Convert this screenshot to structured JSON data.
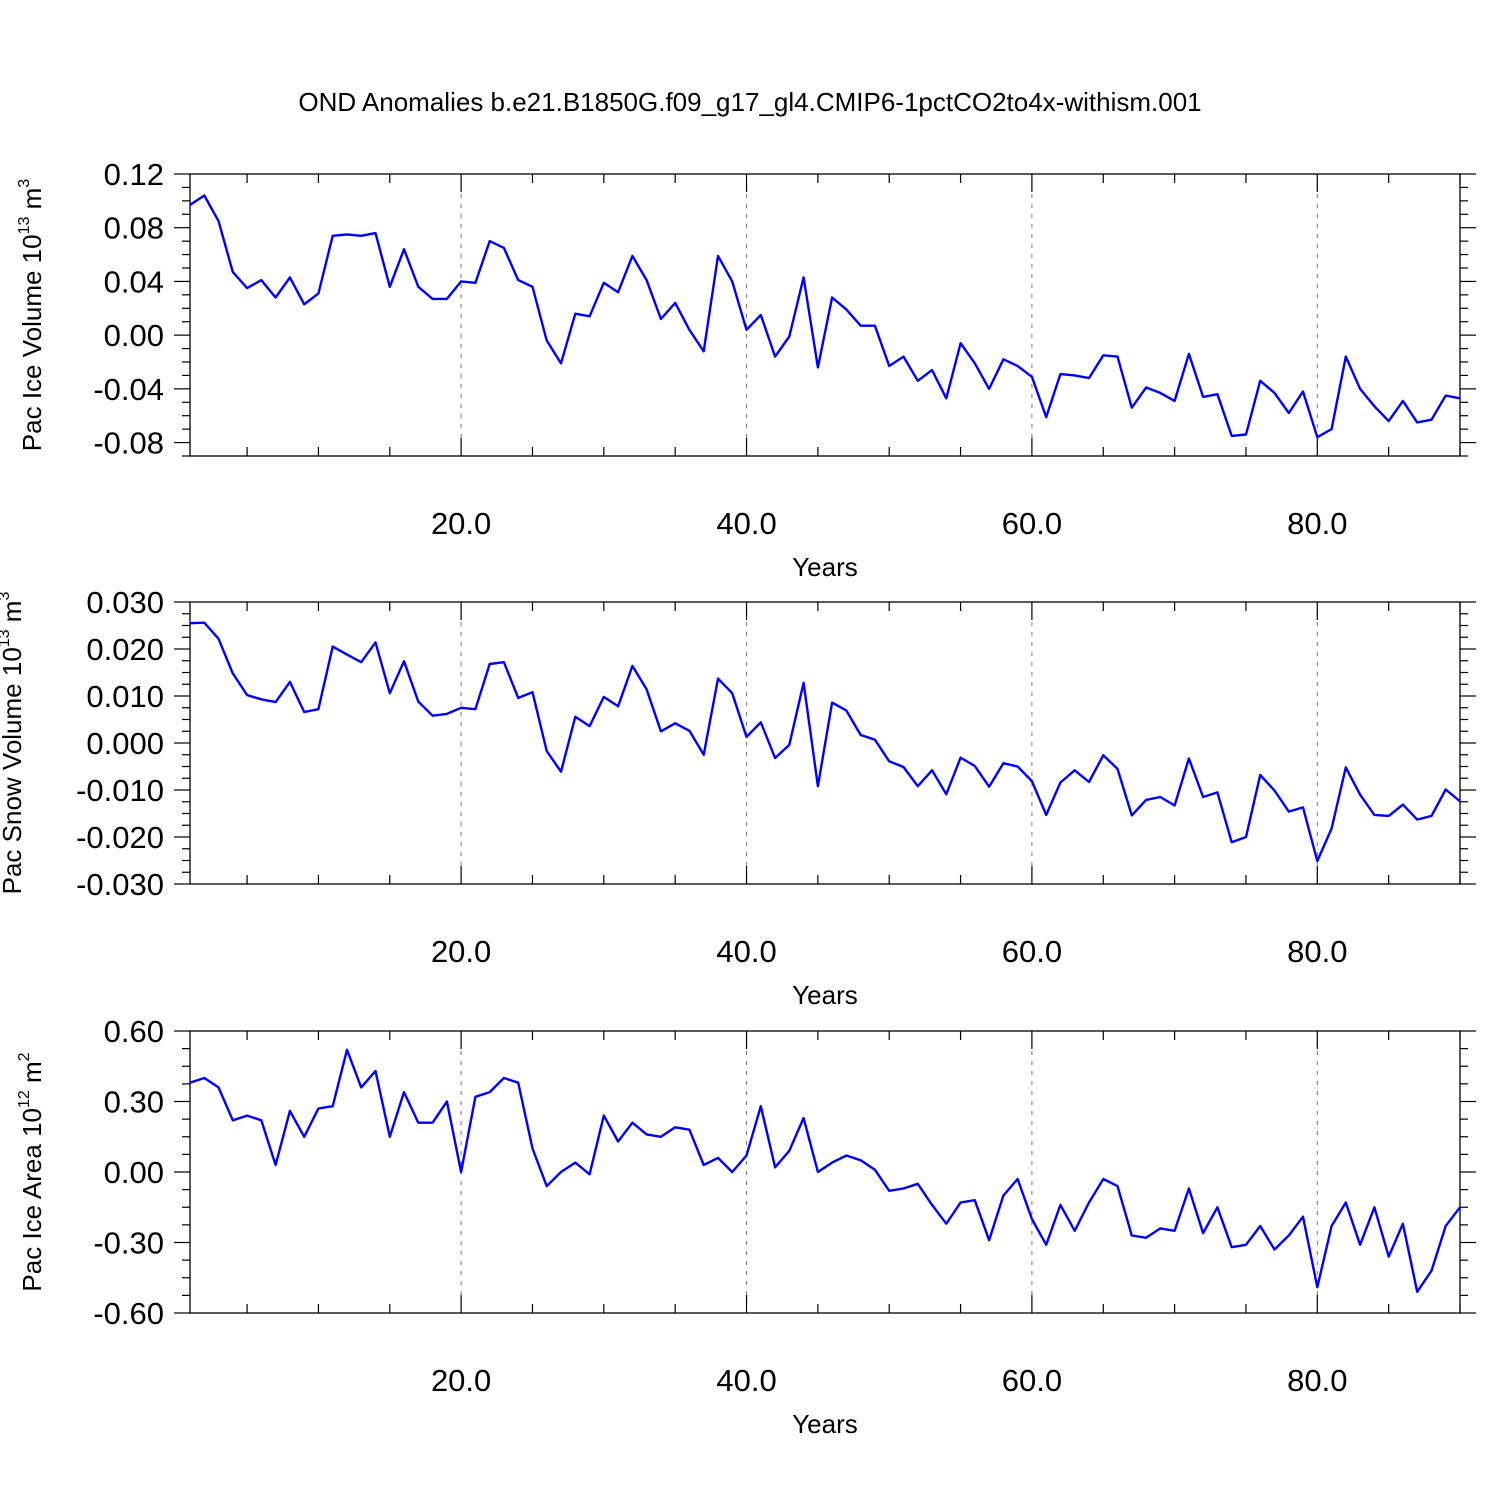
{
  "title": "OND Anomalies b.e21.B1850G.f09_g17_gl4.CMIP6-1pctCO2to4x-withism.001",
  "line_color": "#0000ff",
  "chart_data": [
    {
      "type": "line",
      "ylabel_main": "Pac Ice Volume 10",
      "ylabel_exp": "13",
      "ylabel_unit": " m",
      "ylabel_unit_exp": "3",
      "xlabel": "Years",
      "xlim": [
        1,
        90
      ],
      "ylim": [
        -0.09,
        0.12
      ],
      "xticks": [
        20,
        40,
        60,
        80
      ],
      "xtick_labels": [
        "20.0",
        "40.0",
        "60.0",
        "80.0"
      ],
      "yticks": [
        0.12,
        0.08,
        0.04,
        0.0,
        -0.04,
        -0.08
      ],
      "ytick_labels": [
        "0.12",
        "0.08",
        "0.04",
        "0.00",
        "-0.04",
        "-0.08"
      ],
      "grid": "x-dashed",
      "x": [
        1,
        2,
        3,
        4,
        5,
        6,
        7,
        8,
        9,
        10,
        11,
        12,
        13,
        14,
        15,
        16,
        17,
        18,
        19,
        20,
        21,
        22,
        23,
        24,
        25,
        26,
        27,
        28,
        29,
        30,
        31,
        32,
        33,
        34,
        35,
        36,
        37,
        38,
        39,
        40,
        41,
        42,
        43,
        44,
        45,
        46,
        47,
        48,
        49,
        50,
        51,
        52,
        53,
        54,
        55,
        56,
        57,
        58,
        59,
        60,
        61,
        62,
        63,
        64,
        65,
        66,
        67,
        68,
        69,
        70,
        71,
        72,
        73,
        74,
        75,
        76,
        77,
        78,
        79,
        80,
        81,
        82,
        83,
        84,
        85,
        86,
        87,
        88,
        89,
        90
      ],
      "values": [
        0.097,
        0.104,
        0.085,
        0.047,
        0.035,
        0.041,
        0.028,
        0.043,
        0.023,
        0.031,
        0.074,
        0.075,
        0.074,
        0.076,
        0.036,
        0.064,
        0.036,
        0.027,
        0.027,
        0.04,
        0.039,
        0.07,
        0.065,
        0.041,
        0.036,
        -0.004,
        -0.021,
        0.016,
        0.014,
        0.039,
        0.032,
        0.059,
        0.041,
        0.012,
        0.024,
        0.004,
        -0.012,
        0.059,
        0.04,
        0.004,
        0.015,
        -0.016,
        -0.001,
        0.043,
        -0.024,
        0.028,
        0.019,
        0.007,
        0.007,
        -0.023,
        -0.016,
        -0.034,
        -0.026,
        -0.047,
        -0.006,
        -0.021,
        -0.04,
        -0.018,
        -0.023,
        -0.031,
        -0.061,
        -0.029,
        -0.03,
        -0.032,
        -0.015,
        -0.016,
        -0.054,
        -0.039,
        -0.043,
        -0.049,
        -0.014,
        -0.046,
        -0.044,
        -0.075,
        -0.074,
        -0.034,
        -0.043,
        -0.058,
        -0.042,
        -0.076,
        -0.07,
        -0.016,
        -0.04,
        -0.053,
        -0.064,
        -0.049,
        -0.065,
        -0.063,
        -0.045,
        -0.047
      ]
    },
    {
      "type": "line",
      "ylabel_main": "Pac Snow Volume 10",
      "ylabel_exp": "13",
      "ylabel_unit": " m",
      "ylabel_unit_exp": "3",
      "xlabel": "Years",
      "xlim": [
        1,
        90
      ],
      "ylim": [
        -0.03,
        0.03
      ],
      "xticks": [
        20,
        40,
        60,
        80
      ],
      "xtick_labels": [
        "20.0",
        "40.0",
        "60.0",
        "80.0"
      ],
      "yticks": [
        0.03,
        0.02,
        0.01,
        0.0,
        -0.01,
        -0.02,
        -0.03
      ],
      "ytick_labels": [
        "0.030",
        "0.020",
        "0.010",
        "0.000",
        "-0.010",
        "-0.020",
        "-0.030"
      ],
      "grid": "x-dashed",
      "x": [
        1,
        2,
        3,
        4,
        5,
        6,
        7,
        8,
        9,
        10,
        11,
        12,
        13,
        14,
        15,
        16,
        17,
        18,
        19,
        20,
        21,
        22,
        23,
        24,
        25,
        26,
        27,
        28,
        29,
        30,
        31,
        32,
        33,
        34,
        35,
        36,
        37,
        38,
        39,
        40,
        41,
        42,
        43,
        44,
        45,
        46,
        47,
        48,
        49,
        50,
        51,
        52,
        53,
        54,
        55,
        56,
        57,
        58,
        59,
        60,
        61,
        62,
        63,
        64,
        65,
        66,
        67,
        68,
        69,
        70,
        71,
        72,
        73,
        74,
        75,
        76,
        77,
        78,
        79,
        80,
        81,
        82,
        83,
        84,
        85,
        86,
        87,
        88,
        89,
        90
      ],
      "values": [
        0.0255,
        0.0256,
        0.0222,
        0.0148,
        0.0102,
        0.0093,
        0.0087,
        0.013,
        0.0066,
        0.0072,
        0.0205,
        0.0188,
        0.0172,
        0.0214,
        0.0106,
        0.0174,
        0.0088,
        0.0058,
        0.0062,
        0.0075,
        0.0072,
        0.0168,
        0.0172,
        0.0096,
        0.0108,
        -0.0017,
        -0.0061,
        0.0056,
        0.0036,
        0.0098,
        0.0078,
        0.0164,
        0.0114,
        0.0025,
        0.0042,
        0.0026,
        -0.0025,
        0.0137,
        0.0106,
        0.0013,
        0.0044,
        -0.0032,
        -0.0004,
        0.0128,
        -0.0092,
        0.0086,
        0.0069,
        0.0017,
        0.0007,
        -0.0039,
        -0.0051,
        -0.0092,
        -0.0058,
        -0.0109,
        -0.0031,
        -0.0049,
        -0.0093,
        -0.0043,
        -0.005,
        -0.0081,
        -0.0153,
        -0.0084,
        -0.0058,
        -0.0083,
        -0.0026,
        -0.0055,
        -0.0154,
        -0.0121,
        -0.0115,
        -0.0133,
        -0.0033,
        -0.0115,
        -0.0105,
        -0.0211,
        -0.02,
        -0.0068,
        -0.0101,
        -0.0146,
        -0.0137,
        -0.0251,
        -0.0182,
        -0.0052,
        -0.011,
        -0.0153,
        -0.0155,
        -0.0131,
        -0.0163,
        -0.0155,
        -0.0099,
        -0.0124
      ]
    },
    {
      "type": "line",
      "ylabel_main": "Pac Ice Area 10",
      "ylabel_exp": "12",
      "ylabel_unit": " m",
      "ylabel_unit_exp": "2",
      "xlabel": "Years",
      "xlim": [
        1,
        90
      ],
      "ylim": [
        -0.6,
        0.6
      ],
      "xticks": [
        20,
        40,
        60,
        80
      ],
      "xtick_labels": [
        "20.0",
        "40.0",
        "60.0",
        "80.0"
      ],
      "yticks": [
        0.6,
        0.3,
        0.0,
        -0.3,
        -0.6
      ],
      "ytick_labels": [
        "0.60",
        "0.30",
        "0.00",
        "-0.30",
        "-0.60"
      ],
      "grid": "x-dashed",
      "x": [
        1,
        2,
        3,
        4,
        5,
        6,
        7,
        8,
        9,
        10,
        11,
        12,
        13,
        14,
        15,
        16,
        17,
        18,
        19,
        20,
        21,
        22,
        23,
        24,
        25,
        26,
        27,
        28,
        29,
        30,
        31,
        32,
        33,
        34,
        35,
        36,
        37,
        38,
        39,
        40,
        41,
        42,
        43,
        44,
        45,
        46,
        47,
        48,
        49,
        50,
        51,
        52,
        53,
        54,
        55,
        56,
        57,
        58,
        59,
        60,
        61,
        62,
        63,
        64,
        65,
        66,
        67,
        68,
        69,
        70,
        71,
        72,
        73,
        74,
        75,
        76,
        77,
        78,
        79,
        80,
        81,
        82,
        83,
        84,
        85,
        86,
        87,
        88,
        89,
        90
      ],
      "values": [
        0.38,
        0.4,
        0.36,
        0.22,
        0.24,
        0.22,
        0.03,
        0.26,
        0.15,
        0.27,
        0.28,
        0.52,
        0.36,
        0.43,
        0.15,
        0.34,
        0.21,
        0.21,
        0.3,
        -0.0,
        0.32,
        0.34,
        0.4,
        0.38,
        0.1,
        -0.06,
        -0.0,
        0.04,
        -0.01,
        0.24,
        0.13,
        0.21,
        0.16,
        0.15,
        0.19,
        0.18,
        0.03,
        0.06,
        -0.0,
        0.07,
        0.28,
        0.02,
        0.09,
        0.23,
        0.0,
        0.04,
        0.07,
        0.05,
        0.01,
        -0.08,
        -0.07,
        -0.05,
        -0.14,
        -0.22,
        -0.13,
        -0.12,
        -0.29,
        -0.1,
        -0.03,
        -0.2,
        -0.31,
        -0.14,
        -0.25,
        -0.13,
        -0.03,
        -0.06,
        -0.27,
        -0.28,
        -0.24,
        -0.25,
        -0.07,
        -0.26,
        -0.15,
        -0.32,
        -0.31,
        -0.23,
        -0.33,
        -0.27,
        -0.19,
        -0.49,
        -0.23,
        -0.13,
        -0.31,
        -0.15,
        -0.36,
        -0.22,
        -0.51,
        -0.42,
        -0.23,
        -0.15
      ]
    }
  ]
}
